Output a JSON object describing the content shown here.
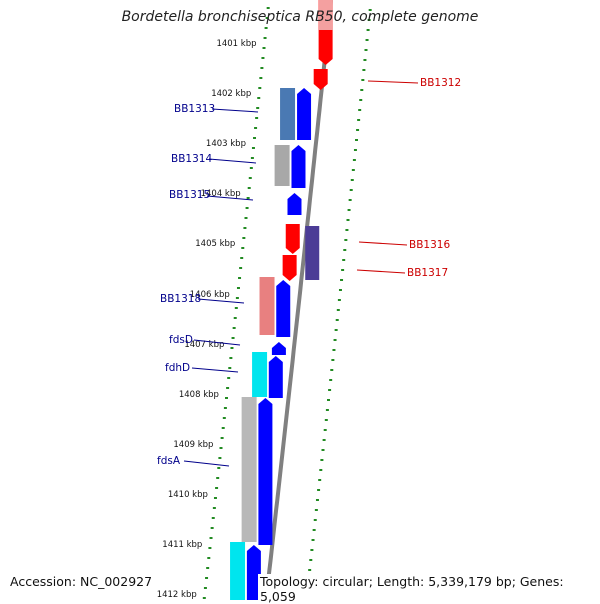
{
  "title": "Bordetella bronchiseptica RB50, complete genome",
  "footer": {
    "accession": "Accession: NC_002927",
    "summary": "Topology: circular; Length: 5,339,179 bp; Genes: 5,059"
  },
  "colors": {
    "backbone": "#808080",
    "cds_forward": "#0000ff",
    "cds_reverse": "#ff0000",
    "label_forward": "#00008b",
    "label_reverse": "#cc0000",
    "ruler_ticks": "#228b22"
  },
  "ruler": {
    "unit": "kbp",
    "labels": [
      "1401 kbp",
      "1402 kbp",
      "1403 kbp",
      "1404 kbp",
      "1405 kbp",
      "1406 kbp",
      "1407 kbp",
      "1408 kbp",
      "1409 kbp",
      "1410 kbp",
      "1411 kbp",
      "1412 kbp"
    ]
  },
  "genes": [
    {
      "label": "BB1312",
      "strand": "reverse"
    },
    {
      "label": "BB1313",
      "strand": "forward"
    },
    {
      "label": "BB1314",
      "strand": "forward"
    },
    {
      "label": "BB1315",
      "strand": "forward"
    },
    {
      "label": "BB1316",
      "strand": "reverse"
    },
    {
      "label": "BB1317",
      "strand": "reverse"
    },
    {
      "label": "BB1318",
      "strand": "forward"
    },
    {
      "label": "fdsD",
      "strand": "forward"
    },
    {
      "label": "fdhD",
      "strand": "forward"
    },
    {
      "label": "fdsA",
      "strand": "forward"
    }
  ]
}
